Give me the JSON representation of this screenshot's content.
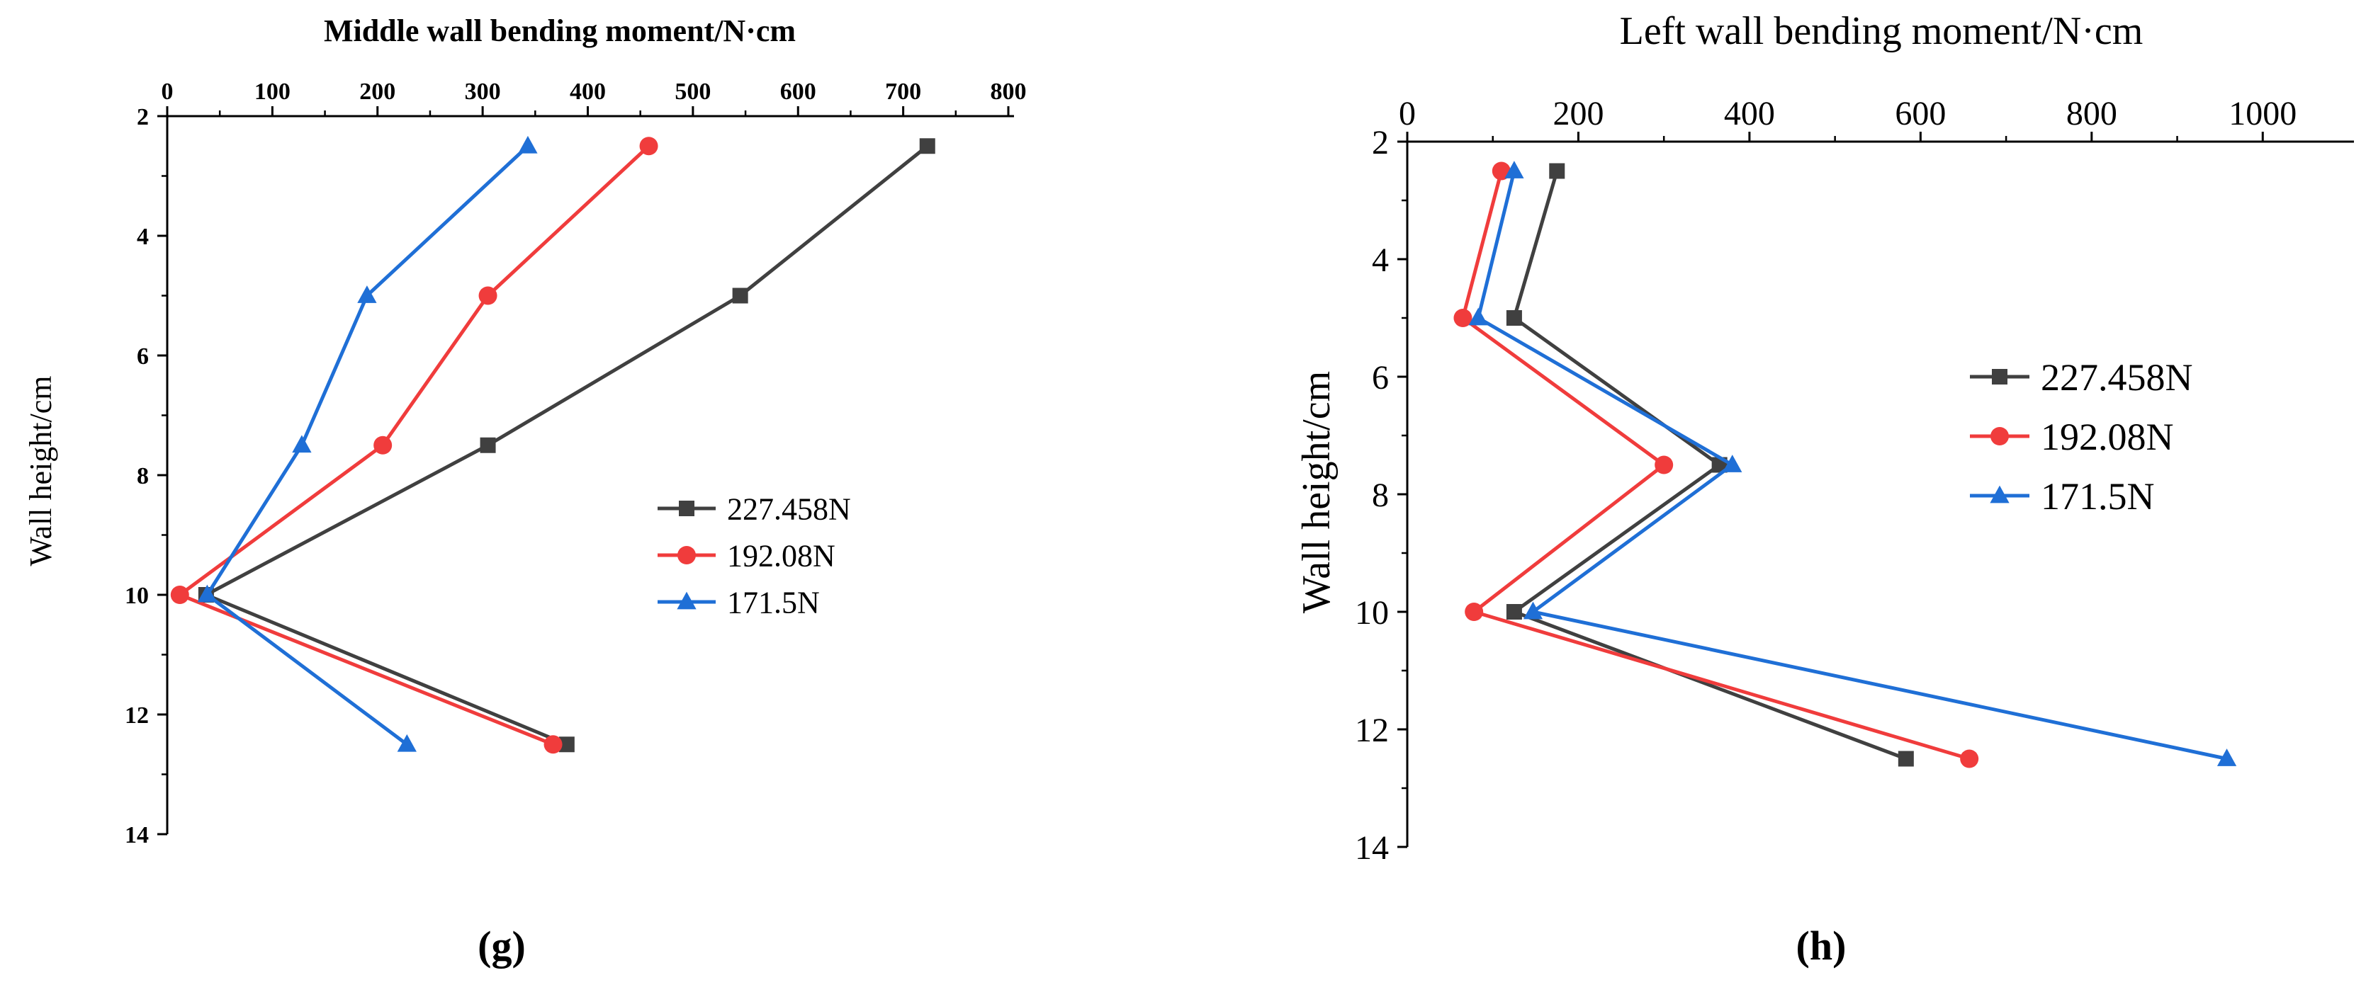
{
  "chart_data": [
    {
      "id": "g",
      "type": "line",
      "title": "Middle wall bending moment/N·cm",
      "xlabel": "Middle wall bending moment/N·cm",
      "ylabel": "Wall height/cm",
      "xlim": [
        0,
        800
      ],
      "ylim": [
        2,
        14
      ],
      "y_inverted": true,
      "x_axis_position": "top",
      "xticks": [
        0,
        100,
        200,
        300,
        400,
        500,
        600,
        700,
        800
      ],
      "yticks": [
        2,
        4,
        6,
        8,
        10,
        12,
        14
      ],
      "caption": "(g)",
      "legend_position": "center-right",
      "series": [
        {
          "name": "227.458N",
          "color": "#404040",
          "marker": "square",
          "points": [
            [
              723,
              2.5
            ],
            [
              545,
              5.0
            ],
            [
              305,
              7.5
            ],
            [
              37,
              10.0
            ],
            [
              380,
              12.5
            ]
          ]
        },
        {
          "name": "192.08N",
          "color": "#f03c3c",
          "marker": "circle",
          "points": [
            [
              458,
              2.5
            ],
            [
              305,
              5.0
            ],
            [
              205,
              7.5
            ],
            [
              12,
              10.0
            ],
            [
              367,
              12.5
            ]
          ]
        },
        {
          "name": "171.5N",
          "color": "#1f6fd6",
          "marker": "triangle",
          "points": [
            [
              343,
              2.5
            ],
            [
              190,
              5.0
            ],
            [
              128,
              7.5
            ],
            [
              38,
              10.0
            ],
            [
              228,
              12.5
            ]
          ]
        }
      ]
    },
    {
      "id": "h",
      "type": "line",
      "title": "Left wall bending moment/N·cm",
      "xlabel": "Left wall bending moment/N·cm",
      "ylabel": "Wall height/cm",
      "xlim": [
        0,
        1100
      ],
      "ylim": [
        2,
        14
      ],
      "y_inverted": true,
      "x_axis_position": "top",
      "xticks": [
        0,
        200,
        400,
        600,
        800,
        1000
      ],
      "yticks": [
        2,
        4,
        6,
        8,
        10,
        12,
        14
      ],
      "caption": "(h)",
      "legend_position": "upper-right",
      "series": [
        {
          "name": "227.458N",
          "color": "#404040",
          "marker": "square",
          "points": [
            [
              175,
              2.5
            ],
            [
              125,
              5.0
            ],
            [
              365,
              7.5
            ],
            [
              125,
              10.0
            ],
            [
              583,
              12.5
            ]
          ]
        },
        {
          "name": "192.08N",
          "color": "#f03c3c",
          "marker": "circle",
          "points": [
            [
              110,
              2.5
            ],
            [
              65,
              5.0
            ],
            [
              300,
              7.5
            ],
            [
              78,
              10.0
            ],
            [
              657,
              12.5
            ]
          ]
        },
        {
          "name": "171.5N",
          "color": "#1f6fd6",
          "marker": "triangle",
          "points": [
            [
              125,
              2.5
            ],
            [
              83,
              5.0
            ],
            [
              380,
              7.5
            ],
            [
              147,
              10.0
            ],
            [
              958,
              12.5
            ]
          ]
        }
      ]
    }
  ]
}
